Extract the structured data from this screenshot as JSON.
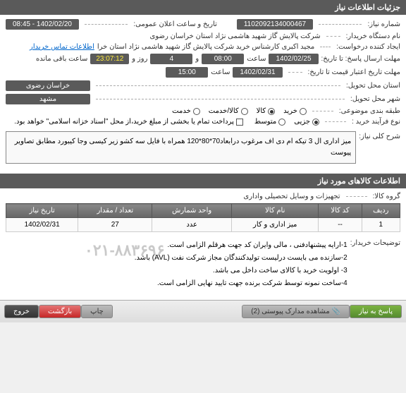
{
  "section1": {
    "title": "جزئیات اطلاعات نیاز",
    "need_number_label": "شماره نیاز:",
    "need_number": "1102092134000467",
    "announce_label": "تاریخ و ساعت اعلان عمومی:",
    "announce_value": "1402/02/20 - 08:45",
    "buyer_label": "نام دستگاه خریدار:",
    "buyer_value": "شرکت پالایش گاز شهید هاشمی نژاد   استان خراسان رضوی",
    "creator_label": "ایجاد کننده درخواست:",
    "creator_value": "مجید اکبری کارشناس خرید شرکت پالایش گاز شهید هاشمی نژاد   استان خرا",
    "contact_link": "اطلاعات تماس خریدار",
    "deadline_reply_label": "مهلت ارسال پاسخ: تا تاریخ:",
    "deadline_reply_date": "1402/02/25",
    "time_label": "ساعت",
    "deadline_reply_time": "08:00",
    "remaining_prefix": "و",
    "remaining_days": "4",
    "remaining_mid": "روز و",
    "remaining_time": "23:07:12",
    "remaining_suffix": "ساعت باقی مانده",
    "validity_label": "مهلت تاریخ اعتبار قیمت تا تاریخ:",
    "validity_date": "1402/02/31",
    "validity_time": "15:00",
    "province_label": "استان محل تحویل:",
    "province_value": "خراسان رضوی",
    "city_label": "شهر محل تحویل:",
    "city_value": "مشهد",
    "category_label": "طبقه بندی موضوعی:",
    "cat_options": [
      "خرید",
      "کالا",
      "کالا/خدمت",
      "خدمت"
    ],
    "cat_selected": 1,
    "process_label": "نوع فرآیند خرید :",
    "proc_options": [
      "جزیی",
      "متوسط"
    ],
    "proc_selected": 0,
    "payment_note": "پرداخت تمام یا بخشی از مبلغ خرید،از محل \"اسناد خزانه اسلامی\" خواهد بود.",
    "summary_label": "شرح کلی نیاز:",
    "summary_text": "میز اداری ال 3 تیکه ام دی اف مرغوب درابعاد70*80*120 همراه با فایل سه کشو زیر کیسی وجا کیبورد مطابق تصاویر پیوست"
  },
  "section2": {
    "title": "اطلاعات کالاهای مورد نیاز",
    "group_label": "گروه کالا:",
    "group_value": "تجهیزات و وسایل تحصیلی واداری",
    "columns": [
      "ردیف",
      "کد کالا",
      "نام کالا",
      "واحد شمارش",
      "تعداد / مقدار",
      "تاریخ نیاز"
    ],
    "rows": [
      [
        "1",
        "--",
        "میز اداری و کار",
        "عدد",
        "27",
        "1402/02/31"
      ]
    ],
    "buyer_notes_label": "توضیحات خریدار:",
    "notes": [
      "1-ارایه پیشنهادفنی ، مالی وایران کد جهت هرقلم الزامی است.",
      "2-سازنده می بایست درلیست تولیدکنندگان مجاز شرکت نفت (AVL)  باشد.",
      "3- اولویت خرید با کالای ساخت  داخل می باشد.",
      "4-ساخت نمونه توسط شرکت برنده جهت تایید نهایی الزامی است."
    ],
    "blurred_numbers": "۰۲۱-۸۸۳۶۹۶"
  },
  "footer": {
    "reply": "پاسخ به نیاز",
    "attachments": "مشاهده مدارک پیوستی (2)",
    "print": "چاپ",
    "back": "بازگشت",
    "exit": "خروج"
  }
}
